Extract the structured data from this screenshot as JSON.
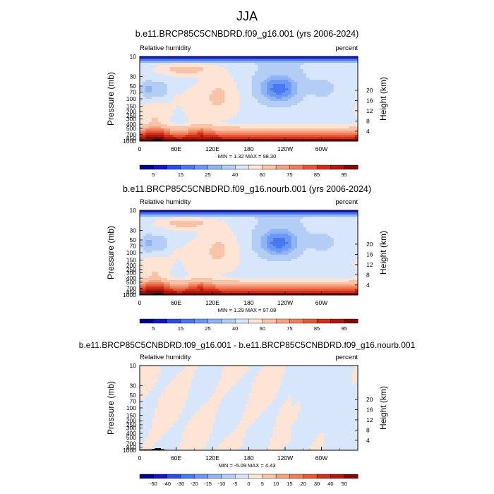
{
  "figure_title": "JJA",
  "chart_data": [
    {
      "type": "heatmap",
      "title": "b.e11.BRCP85C5CNBDRD.f09_g16.001 (yrs 2006-2024)",
      "left_label": "Relative humidity",
      "right_label": "percent",
      "xlabel": "",
      "ylabel": "Pressure (mb)",
      "y2label": "Height (km)",
      "x_ticks": [
        "0",
        "60E",
        "120E",
        "180",
        "120W",
        "60W"
      ],
      "x_tick_values": [
        0,
        60,
        120,
        180,
        240,
        300
      ],
      "xlim": [
        0,
        360
      ],
      "y_ticks": [
        "10",
        "30",
        "50",
        "70",
        "100",
        "150",
        "200",
        "250",
        "300",
        "400",
        "500",
        "700",
        "850",
        "1000"
      ],
      "y_tick_values": [
        10,
        30,
        50,
        70,
        100,
        150,
        200,
        250,
        300,
        400,
        500,
        700,
        850,
        1000
      ],
      "ylim": [
        10,
        1000
      ],
      "y2_ticks": [
        "4",
        "8",
        "12",
        "16",
        "20"
      ],
      "y2_tick_values": [
        4,
        8,
        12,
        16,
        20
      ],
      "stats": "MIN =   1.32  MAX =  98.30",
      "min": 1.32,
      "max": 98.3,
      "colorbar_labels": [
        "5",
        "15",
        "25",
        "40",
        "60",
        "75",
        "85",
        "95"
      ],
      "colorbar_levels": [
        5,
        10,
        15,
        20,
        25,
        30,
        40,
        50,
        60,
        70,
        75,
        80,
        85,
        90,
        95
      ],
      "colors": [
        "#03038a",
        "#1317c2",
        "#2a4fe0",
        "#4a78f0",
        "#6b98f5",
        "#8fb4f5",
        "#b3cdf5",
        "#d7e6fa",
        "#fde4d4",
        "#f9c3a7",
        "#f5a281",
        "#f07e59",
        "#e6583a",
        "#d03018",
        "#ae1a0a",
        "#7b0c04"
      ]
    },
    {
      "type": "heatmap",
      "title": "b.e11.BRCP85C5CNBDRD.f09_g16.nourb.001 (yrs 2006-2024)",
      "left_label": "Relative humidity",
      "right_label": "percent",
      "xlabel": "",
      "ylabel": "Pressure (mb)",
      "y2label": "Height (km)",
      "x_ticks": [
        "0",
        "60E",
        "120E",
        "180",
        "120W",
        "60W"
      ],
      "x_tick_values": [
        0,
        60,
        120,
        180,
        240,
        300
      ],
      "xlim": [
        0,
        360
      ],
      "y_ticks": [
        "10",
        "30",
        "50",
        "70",
        "100",
        "150",
        "200",
        "250",
        "300",
        "400",
        "500",
        "700",
        "850",
        "1000"
      ],
      "y_tick_values": [
        10,
        30,
        50,
        70,
        100,
        150,
        200,
        250,
        300,
        400,
        500,
        700,
        850,
        1000
      ],
      "ylim": [
        10,
        1000
      ],
      "y2_ticks": [
        "4",
        "8",
        "12",
        "16",
        "20"
      ],
      "y2_tick_values": [
        4,
        8,
        12,
        16,
        20
      ],
      "stats": "MIN =   1.29  MAX =  97.08",
      "min": 1.29,
      "max": 97.08,
      "colorbar_labels": [
        "5",
        "15",
        "25",
        "40",
        "60",
        "75",
        "85",
        "95"
      ],
      "colorbar_levels": [
        5,
        10,
        15,
        20,
        25,
        30,
        40,
        50,
        60,
        70,
        75,
        80,
        85,
        90,
        95
      ],
      "colors": [
        "#03038a",
        "#1317c2",
        "#2a4fe0",
        "#4a78f0",
        "#6b98f5",
        "#8fb4f5",
        "#b3cdf5",
        "#d7e6fa",
        "#fde4d4",
        "#f9c3a7",
        "#f5a281",
        "#f07e59",
        "#e6583a",
        "#d03018",
        "#ae1a0a",
        "#7b0c04"
      ]
    },
    {
      "type": "heatmap",
      "title": "b.e11.BRCP85C5CNBDRD.f09_g16.001 - b.e11.BRCP85C5CNBDRD.f09_g16.nourb.001",
      "left_label": "Relative humidity",
      "right_label": "percent",
      "xlabel": "",
      "ylabel": "Pressure (mb)",
      "y2label": "Height (km)",
      "x_ticks": [
        "0",
        "60E",
        "120E",
        "180",
        "120W",
        "60W"
      ],
      "x_tick_values": [
        0,
        60,
        120,
        180,
        240,
        300
      ],
      "xlim": [
        0,
        360
      ],
      "y_ticks": [
        "10",
        "30",
        "50",
        "70",
        "100",
        "150",
        "200",
        "250",
        "300",
        "400",
        "500",
        "700",
        "850",
        "1000"
      ],
      "y_tick_values": [
        10,
        30,
        50,
        70,
        100,
        150,
        200,
        250,
        300,
        400,
        500,
        700,
        850,
        1000
      ],
      "ylim": [
        10,
        1000
      ],
      "y2_ticks": [
        "4",
        "8",
        "12",
        "16",
        "20"
      ],
      "y2_tick_values": [
        4,
        8,
        12,
        16,
        20
      ],
      "stats": "MIN =  -5.09  MAX =   4.43",
      "min": -5.09,
      "max": 4.43,
      "colorbar_labels": [
        "-50",
        "-40",
        "-30",
        "-20",
        "-15",
        "-10",
        "-5",
        "0",
        "5",
        "10",
        "15",
        "20",
        "30",
        "40",
        "50"
      ],
      "colorbar_levels": [
        -50,
        -40,
        -30,
        -20,
        -15,
        -10,
        -5,
        0,
        5,
        10,
        15,
        20,
        30,
        40,
        50
      ],
      "colors": [
        "#03038a",
        "#1317c2",
        "#2a4fe0",
        "#4a78f0",
        "#6b98f5",
        "#8fb4f5",
        "#b3cdf5",
        "#d7e6fa",
        "#fde4d4",
        "#f9c3a7",
        "#f5a281",
        "#f07e59",
        "#e6583a",
        "#d03018",
        "#ae1a0a",
        "#7b0c04"
      ]
    }
  ]
}
